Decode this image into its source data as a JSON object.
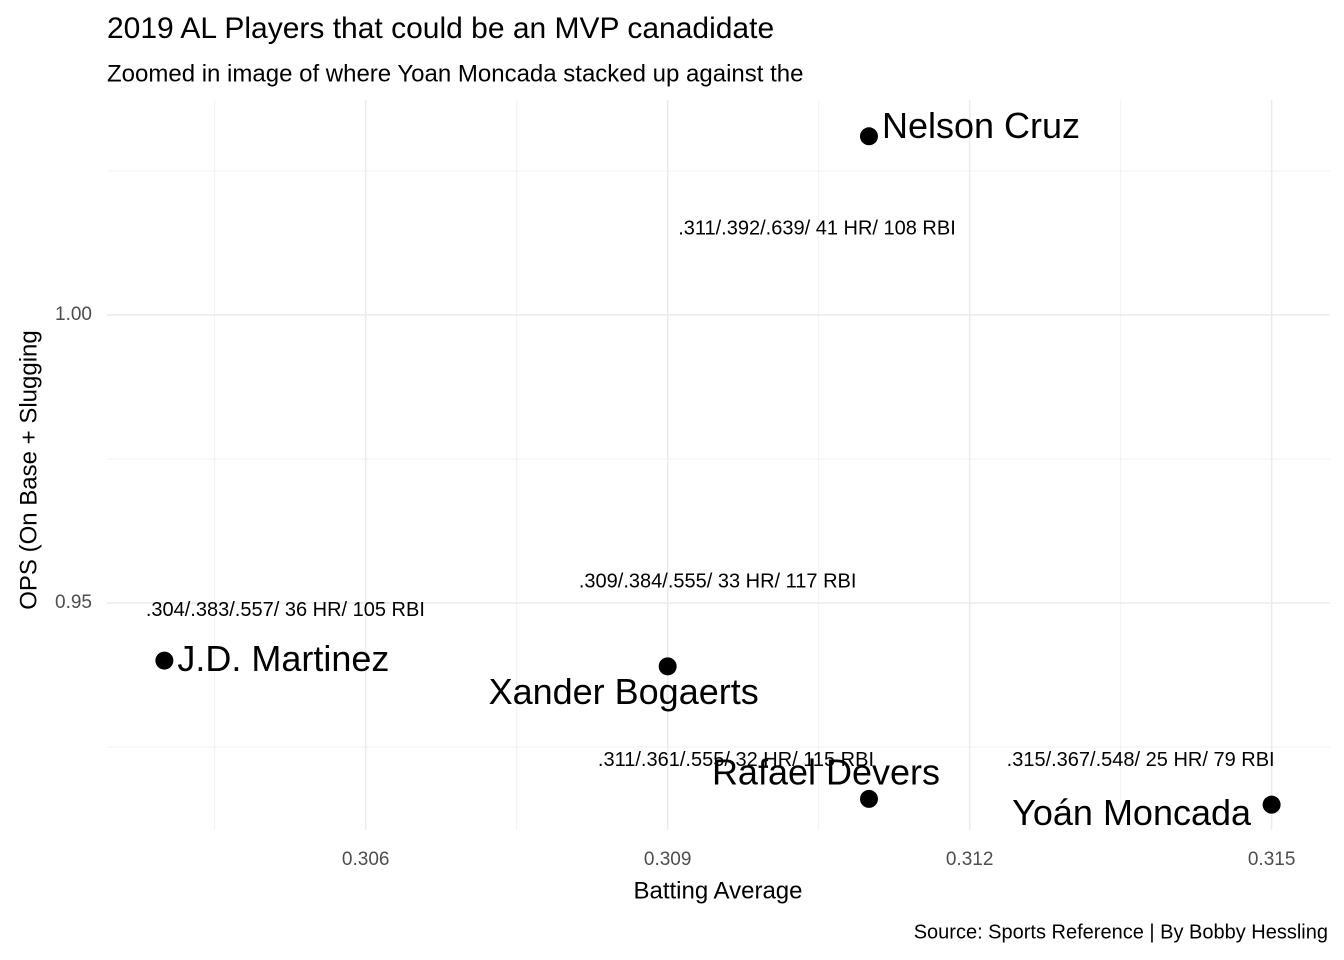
{
  "chart_data": {
    "type": "scatter",
    "title": "2019 AL Players that could be an MVP canadidate",
    "subtitle": "Zoomed in image of where Yoan Moncada stacked up against the",
    "x_label": "Batting Average",
    "y_label": "OPS (On Base + Slugging",
    "caption": "Source: Sports Reference | By Bobby Hessling",
    "x": [
      0.311,
      0.304,
      0.309,
      0.311,
      0.315
    ],
    "values": [
      1.031,
      0.94,
      0.939,
      0.916,
      0.915
    ],
    "labels": [
      "Nelson Cruz",
      "J.D. Martinez",
      "Xander Bogaerts",
      "Rafael Devers",
      "Yoán Moncada"
    ],
    "annotations": [
      ".311/.392/.639/ 41 HR/ 108 RBI",
      ".304/.383/.557/ 36 HR/ 105 RBI",
      ".309/.384/.555/ 33 HR/ 117 RBI",
      ".311/.361/.555/ 32 HR/ 115 RBI",
      ".315/.367/.548/ 25 HR/ 79 RBI"
    ],
    "color": "#000000",
    "xlim": [
      0.30343,
      0.31558
    ],
    "ylim": [
      0.9106,
      1.0373
    ],
    "xticks": [
      {
        "value": 0.306,
        "label": "0.306"
      },
      {
        "value": 0.309,
        "label": "0.309"
      },
      {
        "value": 0.312,
        "label": "0.312"
      },
      {
        "value": 0.315,
        "label": "0.315"
      }
    ],
    "yticks": [
      {
        "value": 0.95,
        "label": "0.95"
      },
      {
        "value": 1.0,
        "label": "1.00"
      }
    ],
    "grid": true
  }
}
